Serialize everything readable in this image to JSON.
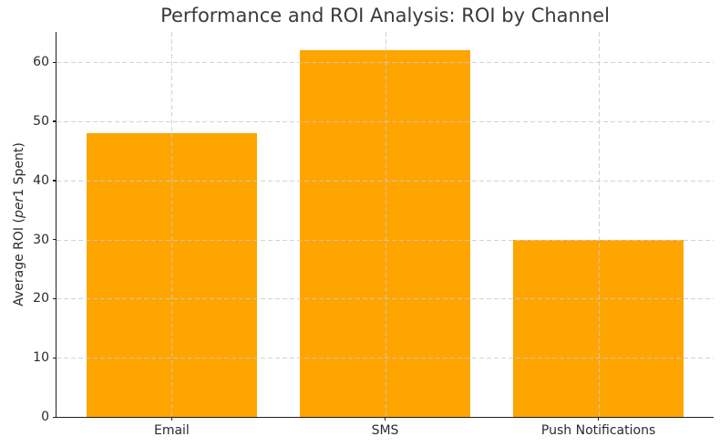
{
  "chart_data": {
    "type": "bar",
    "title": "Performance and ROI Analysis: ROI by Channel",
    "categories": [
      "Email",
      "SMS",
      "Push Notifications"
    ],
    "values": [
      48,
      62,
      30
    ],
    "series": [
      {
        "name": "Average ROI",
        "values": [
          48,
          62,
          30
        ]
      }
    ],
    "xlabel": "",
    "ylabel": "Average ROI (per1 Spent)",
    "ylabel_parts": {
      "prefix": "Average ROI (",
      "italic": "per",
      "suffix": "1 Spent)"
    },
    "yticks": [
      0,
      10,
      20,
      30,
      40,
      50,
      60
    ],
    "ytick_labels": [
      "0",
      "10",
      "20",
      "30",
      "40",
      "50",
      "60"
    ],
    "ylim": [
      0,
      65.1
    ],
    "bar_width_fraction": 0.8,
    "bar_color": "#FFA500",
    "grid": {
      "show": true,
      "axes": "both",
      "style": "dashed",
      "color": "#cccccc",
      "above_bars": true
    },
    "legend": {
      "show": false
    },
    "background_color": "#ffffff",
    "spine_color": "#1f1f1f",
    "text_color": "#2b2b2b"
  }
}
